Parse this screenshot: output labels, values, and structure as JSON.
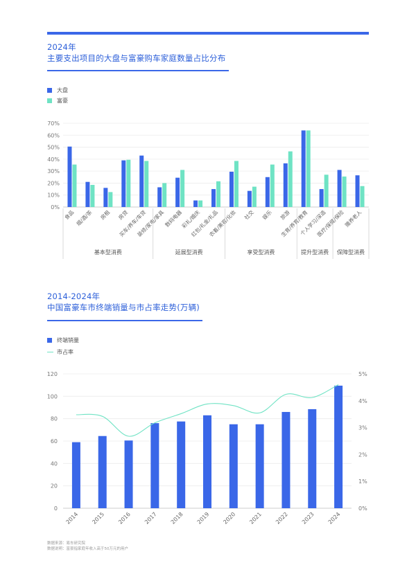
{
  "colors": {
    "accent": "#3a67e8",
    "bar_primary": "#3a67e8",
    "bar_secondary": "#6fe3c4",
    "line": "#6fe3c4"
  },
  "section1": {
    "year": "2024年",
    "title": "主要支出项目的大盘与富豪购车家庭数量占比分布",
    "legend": [
      "大盘",
      "富豪"
    ]
  },
  "section2": {
    "year": "2014-2024年",
    "title": "中国富豪车市终端销量与市占率走势(万辆)",
    "legend": [
      "终端销量",
      "市占率"
    ]
  },
  "footnote": {
    "source": "数据来源：易车研究院",
    "note": "数据说明：富豪指家庭年收入高于50万元的用户"
  },
  "chart_data": [
    {
      "type": "bar",
      "categories": [
        "食品",
        "烟/酒/茶",
        "房租",
        "房贷",
        "买车/养车/车贷",
        "装修/家电/家具",
        "数码电器",
        "彩礼/婚庆",
        "红包/礼金/礼品",
        "衣着/美容/化妆",
        "社交",
        "娱乐",
        "旅游",
        "生育/养育/教育",
        "个人学习/深造",
        "医疗/保健/保险",
        "赡养老人"
      ],
      "series": [
        {
          "name": "大盘",
          "values": [
            50.5,
            21,
            16,
            39,
            43,
            16.5,
            24.5,
            5.5,
            15,
            29.5,
            13.5,
            25,
            36.5,
            64,
            15,
            31,
            26.5
          ]
        },
        {
          "name": "富豪",
          "values": [
            35.5,
            18.5,
            12.5,
            39.5,
            38.5,
            20,
            31,
            5.5,
            21.5,
            38.5,
            17,
            35.5,
            46.5,
            64,
            27,
            25.5,
            17.5
          ]
        }
      ],
      "yticks": [
        "0%",
        "10%",
        "20%",
        "30%",
        "40%",
        "50%",
        "60%",
        "70%"
      ],
      "ylim": [
        0,
        70
      ],
      "groups": [
        {
          "label": "基本型消费",
          "size": 5
        },
        {
          "label": "延展型消费",
          "size": 4
        },
        {
          "label": "享受型消费",
          "size": 4
        },
        {
          "label": "提升型消费",
          "size": 2
        },
        {
          "label": "保障型消费",
          "size": 2
        }
      ],
      "legend_position": "top-left",
      "grid": true
    },
    {
      "type": "bar",
      "categories": [
        "2014",
        "2015",
        "2016",
        "2017",
        "2018",
        "2019",
        "2020",
        "2021",
        "2022",
        "2023",
        "2024"
      ],
      "series": [
        {
          "name": "终端销量",
          "type": "bar",
          "axis": "left",
          "values": [
            59,
            64.5,
            60.5,
            76,
            77.5,
            83,
            75,
            75,
            86,
            88.5,
            109.5
          ]
        },
        {
          "name": "市占率",
          "type": "line",
          "axis": "right",
          "values": [
            3.48,
            3.42,
            2.68,
            3.18,
            3.52,
            3.88,
            3.82,
            3.55,
            4.24,
            4.12,
            4.6
          ]
        }
      ],
      "ylim_left": [
        0,
        120
      ],
      "yticks_left": [
        "0",
        "20",
        "40",
        "60",
        "80",
        "100",
        "120"
      ],
      "ylim_right": [
        0,
        5
      ],
      "yticks_right": [
        "0%",
        "1%",
        "2%",
        "3%",
        "4%",
        "5%"
      ],
      "legend_position": "top-left",
      "grid": true
    }
  ]
}
